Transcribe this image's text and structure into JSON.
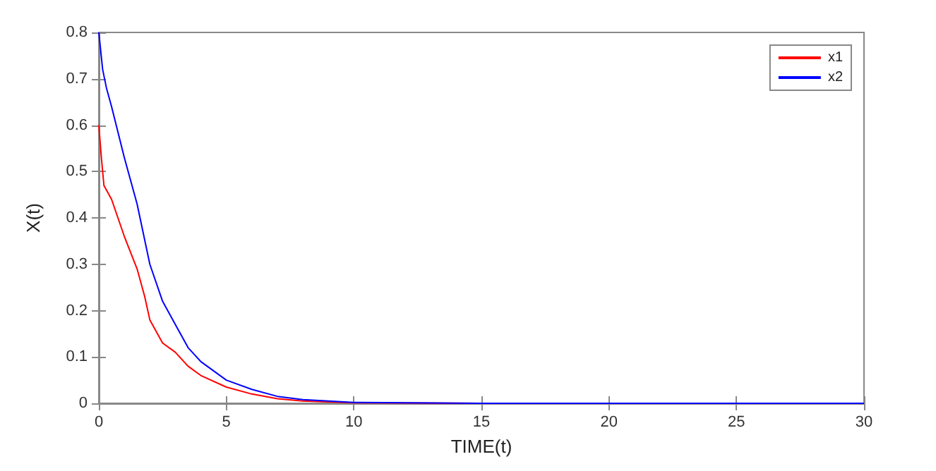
{
  "chart_data": {
    "type": "line",
    "xlabel": "TIME(t)",
    "ylabel": "X(t)",
    "xlim": [
      0,
      30
    ],
    "xticks": [
      0,
      5,
      10,
      15,
      20,
      25,
      30
    ],
    "ylim": [
      0,
      0.8
    ],
    "yticks": [
      0,
      0.1,
      0.2,
      0.3,
      0.4,
      0.5,
      0.6,
      0.7,
      0.8
    ],
    "grid": false,
    "legend": "top right",
    "marker": "none",
    "line_style": "solid",
    "series": [
      {
        "name": "x1",
        "color": "#ff0000",
        "x": [
          0,
          0.1,
          0.2,
          0.5,
          1,
          1.5,
          1.8,
          2,
          2.5,
          3,
          3.5,
          4,
          5,
          6,
          7,
          8,
          10,
          15
        ],
        "values": [
          0.6,
          0.53,
          0.47,
          0.44,
          0.36,
          0.29,
          0.23,
          0.18,
          0.13,
          0.11,
          0.08,
          0.06,
          0.035,
          0.02,
          0.01,
          0.005,
          0.001,
          0
        ]
      },
      {
        "name": "x2",
        "color": "#0000ff",
        "x": [
          0,
          0.15,
          0.3,
          0.5,
          1,
          1.5,
          2,
          2.5,
          3,
          3.5,
          4,
          5,
          6,
          7,
          8,
          10,
          15,
          20,
          30
        ],
        "values": [
          0.8,
          0.72,
          0.68,
          0.64,
          0.53,
          0.43,
          0.3,
          0.22,
          0.17,
          0.12,
          0.09,
          0.05,
          0.03,
          0.015,
          0.008,
          0.002,
          0,
          0,
          0
        ]
      }
    ]
  }
}
